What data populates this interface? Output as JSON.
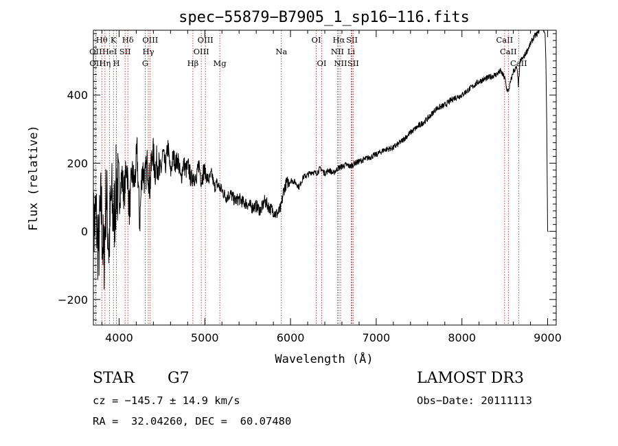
{
  "chart_data": {
    "type": "line",
    "title": "spec−55879−B7905_1_sp16−116.fits",
    "xlabel": "Wavelength (Å)",
    "ylabel": "Flux (relative)",
    "xlim": [
      3700,
      9100
    ],
    "ylim": [
      -275,
      590
    ],
    "xticks": [
      4000,
      5000,
      6000,
      7000,
      8000,
      9000
    ],
    "xtick_labels": [
      "4000",
      "5000",
      "6000",
      "7000",
      "8000",
      "9000"
    ],
    "yticks": [
      -200,
      0,
      200,
      400
    ],
    "ytick_labels": [
      "−200",
      "0",
      "200",
      "400"
    ],
    "series": [
      {
        "name": "flux",
        "x": [
          3700,
          3730,
          3760,
          3790,
          3820,
          3850,
          3880,
          3910,
          3940,
          3970,
          4000,
          4030,
          4060,
          4090,
          4120,
          4150,
          4180,
          4210,
          4240,
          4270,
          4300,
          4330,
          4360,
          4390,
          4420,
          4450,
          4480,
          4510,
          4540,
          4570,
          4600,
          4630,
          4660,
          4690,
          4720,
          4750,
          4780,
          4810,
          4840,
          4870,
          4900,
          4930,
          4960,
          4990,
          5020,
          5050,
          5080,
          5110,
          5140,
          5170,
          5200,
          5250,
          5300,
          5350,
          5400,
          5450,
          5500,
          5550,
          5600,
          5650,
          5700,
          5750,
          5800,
          5830,
          5860,
          5890,
          5920,
          5950,
          6000,
          6050,
          6100,
          6150,
          6200,
          6250,
          6300,
          6350,
          6400,
          6450,
          6500,
          6550,
          6600,
          6650,
          6700,
          6750,
          6800,
          6850,
          6900,
          6950,
          7000,
          7100,
          7200,
          7300,
          7400,
          7500,
          7600,
          7700,
          7800,
          7900,
          8000,
          8100,
          8200,
          8300,
          8400,
          8450,
          8500,
          8520,
          8540,
          8560,
          8600,
          8640,
          8660,
          8680,
          8720,
          8760,
          8800,
          8840,
          8880,
          8920,
          8950,
          8970,
          8980,
          8990,
          9000,
          9010
        ],
        "y": [
          0,
          50,
          -60,
          80,
          -100,
          120,
          -50,
          100,
          30,
          150,
          90,
          160,
          110,
          200,
          60,
          170,
          140,
          230,
          20,
          190,
          150,
          200,
          130,
          240,
          180,
          210,
          160,
          230,
          190,
          250,
          170,
          220,
          200,
          210,
          150,
          200,
          180,
          190,
          150,
          170,
          140,
          200,
          150,
          180,
          160,
          150,
          170,
          130,
          140,
          130,
          120,
          100,
          110,
          90,
          95,
          85,
          80,
          70,
          75,
          60,
          90,
          70,
          60,
          50,
          55,
          70,
          120,
          140,
          150,
          145,
          130,
          160,
          165,
          175,
          170,
          185,
          170,
          180,
          170,
          185,
          190,
          195,
          190,
          200,
          205,
          210,
          215,
          220,
          225,
          240,
          245,
          265,
          290,
          310,
          330,
          360,
          370,
          390,
          400,
          420,
          440,
          450,
          460,
          470,
          450,
          420,
          410,
          430,
          470,
          480,
          430,
          500,
          510,
          530,
          550,
          570,
          580,
          600,
          590,
          580,
          500,
          300,
          0,
          0
        ]
      }
    ],
    "spectral_lines": [
      {
        "label": "Hθ",
        "x": 3798,
        "row": 1
      },
      {
        "label": "K",
        "x": 3934,
        "row": 1
      },
      {
        "label": "Hδ",
        "x": 4102,
        "row": 1
      },
      {
        "label": "OII",
        "x": 3727,
        "row": 2
      },
      {
        "label": "HeI",
        "x": 3889,
        "row": 2
      },
      {
        "label": "SII",
        "x": 4070,
        "row": 2
      },
      {
        "label": "OIII",
        "x": 4363,
        "row": 1
      },
      {
        "label": "Hγ",
        "x": 4341,
        "row": 2
      },
      {
        "label": "G",
        "x": 4305,
        "row": 3
      },
      {
        "label": "OII",
        "x": 3729,
        "row": 3
      },
      {
        "label": "Hη",
        "x": 3835,
        "row": 3
      },
      {
        "label": "H",
        "x": 3969,
        "row": 3
      },
      {
        "label": "OIII",
        "x": 5007,
        "row": 1
      },
      {
        "label": "OIII",
        "x": 4959,
        "row": 2
      },
      {
        "label": "Hβ",
        "x": 4861,
        "row": 3
      },
      {
        "label": "Mg",
        "x": 5175,
        "row": 3
      },
      {
        "label": "Na",
        "x": 5893,
        "row": 2
      },
      {
        "label": "OI",
        "x": 6300,
        "row": 1
      },
      {
        "label": "OI",
        "x": 6364,
        "row": 3
      },
      {
        "label": "Hα",
        "x": 6563,
        "row": 1
      },
      {
        "label": "NII",
        "x": 6548,
        "row": 2
      },
      {
        "label": "NII",
        "x": 6584,
        "row": 3
      },
      {
        "label": "SII",
        "x": 6717,
        "row": 1
      },
      {
        "label": "Li",
        "x": 6708,
        "row": 2
      },
      {
        "label": "SII",
        "x": 6731,
        "row": 3
      },
      {
        "label": "CaII",
        "x": 8498,
        "row": 1
      },
      {
        "label": "CaII",
        "x": 8542,
        "row": 2
      },
      {
        "label": "CaII",
        "x": 8662,
        "row": 3
      }
    ]
  },
  "info": {
    "object_class": "STAR",
    "subclass": "G7",
    "survey": "LAMOST DR3",
    "cz": "cz = −145.7 ± 14.9 km/s",
    "obs_date": "Obs−Date: 20111113",
    "coords": "RA =  32.04260, DEC =  60.07480"
  }
}
